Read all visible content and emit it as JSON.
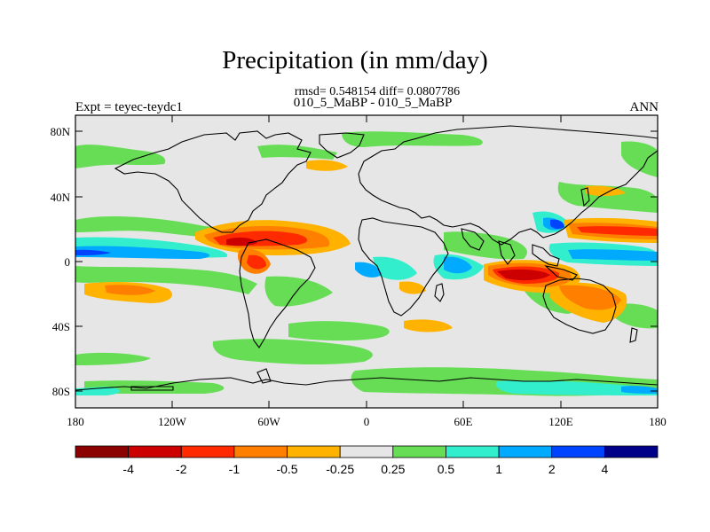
{
  "title": "Precipitation (in mm/day)",
  "stats": "rmsd= 0.548154 diff= 0.0807786",
  "subtitle": "010_5_MaBP - 010_5_MaBP",
  "expt": "Expt = teyec-teydc1",
  "season": "ANN",
  "map": {
    "x_ticks": [
      "180",
      "120W",
      "60W",
      "0",
      "60E",
      "120E",
      "180"
    ],
    "y_ticks": [
      "80N",
      "40N",
      "0",
      "40S",
      "80S"
    ],
    "background_color": "#e6e6e6"
  },
  "colorbar": {
    "colors": [
      "#8b0000",
      "#cc0000",
      "#ff2a00",
      "#ff7f00",
      "#ffb300",
      "#e6e6e6",
      "#66dd55",
      "#33eecc",
      "#00aaff",
      "#0044ff",
      "#000088"
    ],
    "labels": [
      "-4",
      "-2",
      "-1",
      "-0.5",
      "-0.25",
      "0.25",
      "0.5",
      "1",
      "2",
      "4"
    ]
  }
}
